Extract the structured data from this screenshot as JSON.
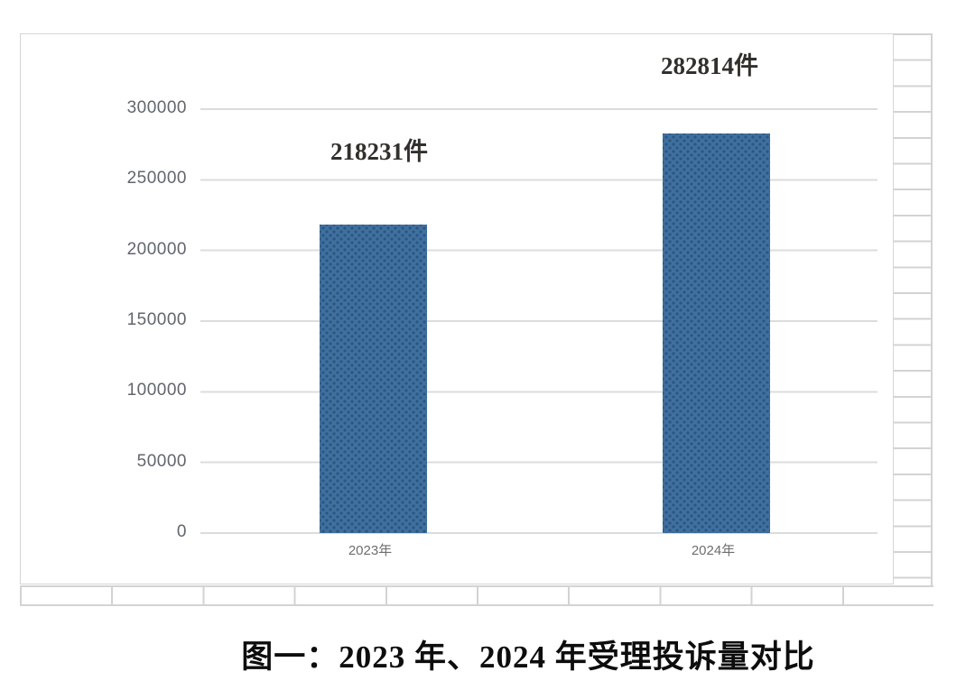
{
  "caption": "图一：2023 年、2024 年受理投诉量对比",
  "chart_data": {
    "type": "bar",
    "title": "",
    "categories": [
      "2023年",
      "2024年"
    ],
    "values": [
      218231,
      282814
    ],
    "data_labels": [
      "218231件",
      "282814件"
    ],
    "ytick_labels": [
      "300000",
      "250000",
      "200000",
      "150000",
      "100000",
      "50000",
      "0"
    ],
    "ylim": [
      0,
      300000
    ],
    "xlabel": "",
    "ylabel": "",
    "grid": "horizontal",
    "legend": "none",
    "colors": {
      "bar_fill": "#3f70a0",
      "bar_pattern_dots": "#2c567e",
      "gridline": "#dcdcdc",
      "axis_labels": "#61656d",
      "sheet_gridline": "#d3d3d3"
    }
  }
}
